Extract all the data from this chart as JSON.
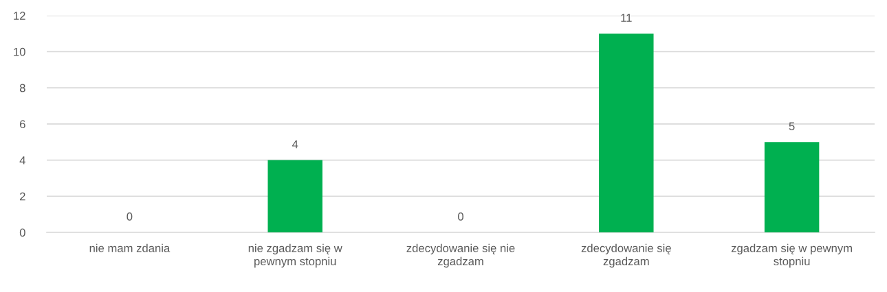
{
  "chart_data": {
    "type": "bar",
    "categories": [
      "nie mam zdania",
      "nie zgadzam się w\npewnym stopniu",
      "zdecydowanie się nie\nzgadzam",
      "zdecydowanie się\nzgadzam",
      "zgadzam się w pewnym\nstopniu"
    ],
    "values": [
      0,
      4,
      0,
      11,
      5
    ],
    "color": "#00b050",
    "ylim": [
      0,
      12
    ],
    "yticks": [
      0,
      2,
      4,
      6,
      8,
      10,
      12
    ],
    "grid": "y",
    "data_labels": true
  }
}
